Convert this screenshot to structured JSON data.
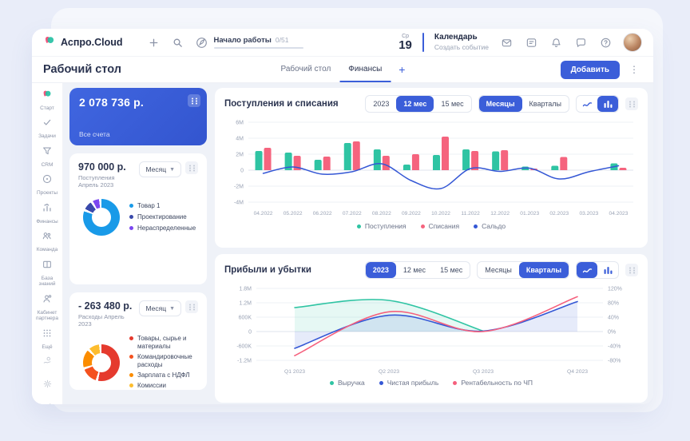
{
  "header": {
    "logo_text": "Аспро.Cloud",
    "onboarding_label": "Начало работы",
    "onboarding_progress": "0/51",
    "date_weekday": "Ср",
    "date_day": "19",
    "calendar_title": "Календарь",
    "calendar_subtitle": "Создать событие"
  },
  "page": {
    "title": "Рабочий стол",
    "tabs": [
      {
        "label": "Рабочий стол",
        "active": false
      },
      {
        "label": "Финансы",
        "active": true
      }
    ],
    "add_button_label": "Добавить"
  },
  "sidebar": {
    "items": [
      {
        "label": "Старт",
        "icon": "logo"
      },
      {
        "label": "Задачи",
        "icon": "tasks"
      },
      {
        "label": "CRM",
        "icon": "crm"
      },
      {
        "label": "Проекты",
        "icon": "projects"
      },
      {
        "label": "Финансы",
        "icon": "finance"
      },
      {
        "label": "Команда",
        "icon": "team"
      },
      {
        "label": "База знаний",
        "icon": "knowledge"
      },
      {
        "label": "Кабинет партнера",
        "icon": "partner"
      },
      {
        "label": "Ещё",
        "icon": "more"
      }
    ],
    "bottom_icons": [
      "hand-coin",
      "gear",
      "megaphone"
    ]
  },
  "cards": {
    "accounts": {
      "amount": "2 078 736 р.",
      "label": "Все счета"
    },
    "income": {
      "amount": "970 000 р.",
      "subtitle": "Поступления Апрель 2023",
      "period_label": "Месяц",
      "legend": [
        {
          "label": "Товар 1",
          "color": "#199ae8"
        },
        {
          "label": "Проектирование",
          "color": "#3949ab"
        },
        {
          "label": "Нераспределенные",
          "color": "#7b46f0"
        }
      ]
    },
    "expense": {
      "amount": "- 263 480 р.",
      "subtitle": "Расходы Апрель 2023",
      "period_label": "Месяц",
      "legend": [
        {
          "label": "Товары, сырье и материалы",
          "color": "#e53a2e"
        },
        {
          "label": "Командировочные расходы",
          "color": "#f4511e"
        },
        {
          "label": "Зарплата с НДФЛ",
          "color": "#fb8c00"
        },
        {
          "label": "Комиссии",
          "color": "#fdbd2e"
        }
      ]
    }
  },
  "charts": {
    "cashflow": {
      "title": "Поступления и списания",
      "period_options": [
        "2023",
        "12 мес",
        "15 мес"
      ],
      "active_period": "12 мес",
      "mode_options": [
        "Месяцы",
        "Кварталы"
      ],
      "active_mode": "Месяцы",
      "active_view": "bars"
    },
    "pl": {
      "title": "Прибыли и убытки",
      "period_options": [
        "2023",
        "12 мес",
        "15 мес"
      ],
      "active_period": "2023",
      "mode_options": [
        "Месяцы",
        "Кварталы"
      ],
      "active_mode": "Кварталы",
      "active_view": "line"
    }
  },
  "chart_data": [
    {
      "id": "income_donut",
      "type": "pie",
      "title": "Поступления Апрель 2023",
      "slices": [
        {
          "label": "Товар 1",
          "color": "#199ae8",
          "value": 86
        },
        {
          "label": "Проектирование",
          "color": "#3949ab",
          "value": 8
        },
        {
          "label": "Нераспределенные",
          "color": "#7b46f0",
          "value": 6
        }
      ]
    },
    {
      "id": "expense_donut",
      "type": "pie",
      "title": "Расходы Апрель 2023",
      "slices": [
        {
          "label": "Товары, сырье и материалы",
          "color": "#e53a2e",
          "value": 58
        },
        {
          "label": "Командировочные расходы",
          "color": "#f4511e",
          "value": 15
        },
        {
          "label": "Зарплата с НДФЛ",
          "color": "#fb8c00",
          "value": 17
        },
        {
          "label": "Комиссии",
          "color": "#fdbd2e",
          "value": 10
        }
      ]
    },
    {
      "id": "cashflow",
      "type": "bar",
      "title": "Поступления и списания",
      "categories": [
        "04.2022",
        "05.2022",
        "06.2022",
        "07.2022",
        "08.2022",
        "09.2022",
        "10.2022",
        "11.2022",
        "12.2022",
        "01.2023",
        "02.2023",
        "03.2023",
        "04.2023"
      ],
      "unit": "M",
      "ylim": [
        -4,
        6
      ],
      "yticks": [
        {
          "label": "6M",
          "v": 6
        },
        {
          "label": "4M",
          "v": 4
        },
        {
          "label": "2M",
          "v": 2
        },
        {
          "label": "0",
          "v": 0
        },
        {
          "label": "-2M",
          "v": -2
        },
        {
          "label": "-4M",
          "v": -4
        }
      ],
      "series": [
        {
          "name": "Поступления",
          "kind": "bar",
          "color": "#2fc4a3",
          "values": [
            2.4,
            2.2,
            1.3,
            3.4,
            2.6,
            0.7,
            1.9,
            2.6,
            2.35,
            0.45,
            0.55,
            0,
            0.85
          ]
        },
        {
          "name": "Списания",
          "kind": "bar",
          "color": "#f5647e",
          "values": [
            2.8,
            1.8,
            1.7,
            3.6,
            1.8,
            2.0,
            4.2,
            2.4,
            2.5,
            0.2,
            1.65,
            0,
            0.3
          ]
        },
        {
          "name": "Сальдо",
          "kind": "line",
          "color": "#3457d5",
          "values": [
            -0.4,
            0.4,
            -0.5,
            -0.2,
            0.8,
            -1.3,
            -2.3,
            0.2,
            -0.15,
            0.25,
            -1.1,
            -0.2,
            0.55
          ]
        }
      ]
    },
    {
      "id": "pl",
      "type": "area",
      "title": "Прибыли и убытки",
      "categories": [
        "Q1 2023",
        "Q2 2023",
        "Q3 2023",
        "Q4 2023"
      ],
      "left_ticks": [
        {
          "label": "1.8M",
          "v": 1.8
        },
        {
          "label": "1.2M",
          "v": 1.2
        },
        {
          "label": "600K",
          "v": 0.6
        },
        {
          "label": "0",
          "v": 0
        },
        {
          "label": "-600K",
          "v": -0.6
        },
        {
          "label": "-1.2M",
          "v": -1.2
        }
      ],
      "right_ticks": [
        "120%",
        "80%",
        "40%",
        "0%",
        "-40%",
        "-80%"
      ],
      "left_lim": [
        -1.2,
        1.8
      ],
      "right_lim": [
        -80,
        120
      ],
      "series": [
        {
          "name": "Выручка",
          "color": "#2fc4a3",
          "fill": true,
          "axis": "left",
          "values": [
            1.0,
            1.3,
            0.02,
            null
          ]
        },
        {
          "name": "Чистая прибыль",
          "color": "#3457d5",
          "fill": true,
          "axis": "left",
          "values": [
            -0.7,
            0.68,
            0.02,
            1.25
          ]
        },
        {
          "name": "Рентабельность по ЧП",
          "color": "#f5607d",
          "fill": false,
          "axis": "right",
          "values": [
            -67,
            55,
            0,
            97
          ]
        }
      ]
    }
  ]
}
